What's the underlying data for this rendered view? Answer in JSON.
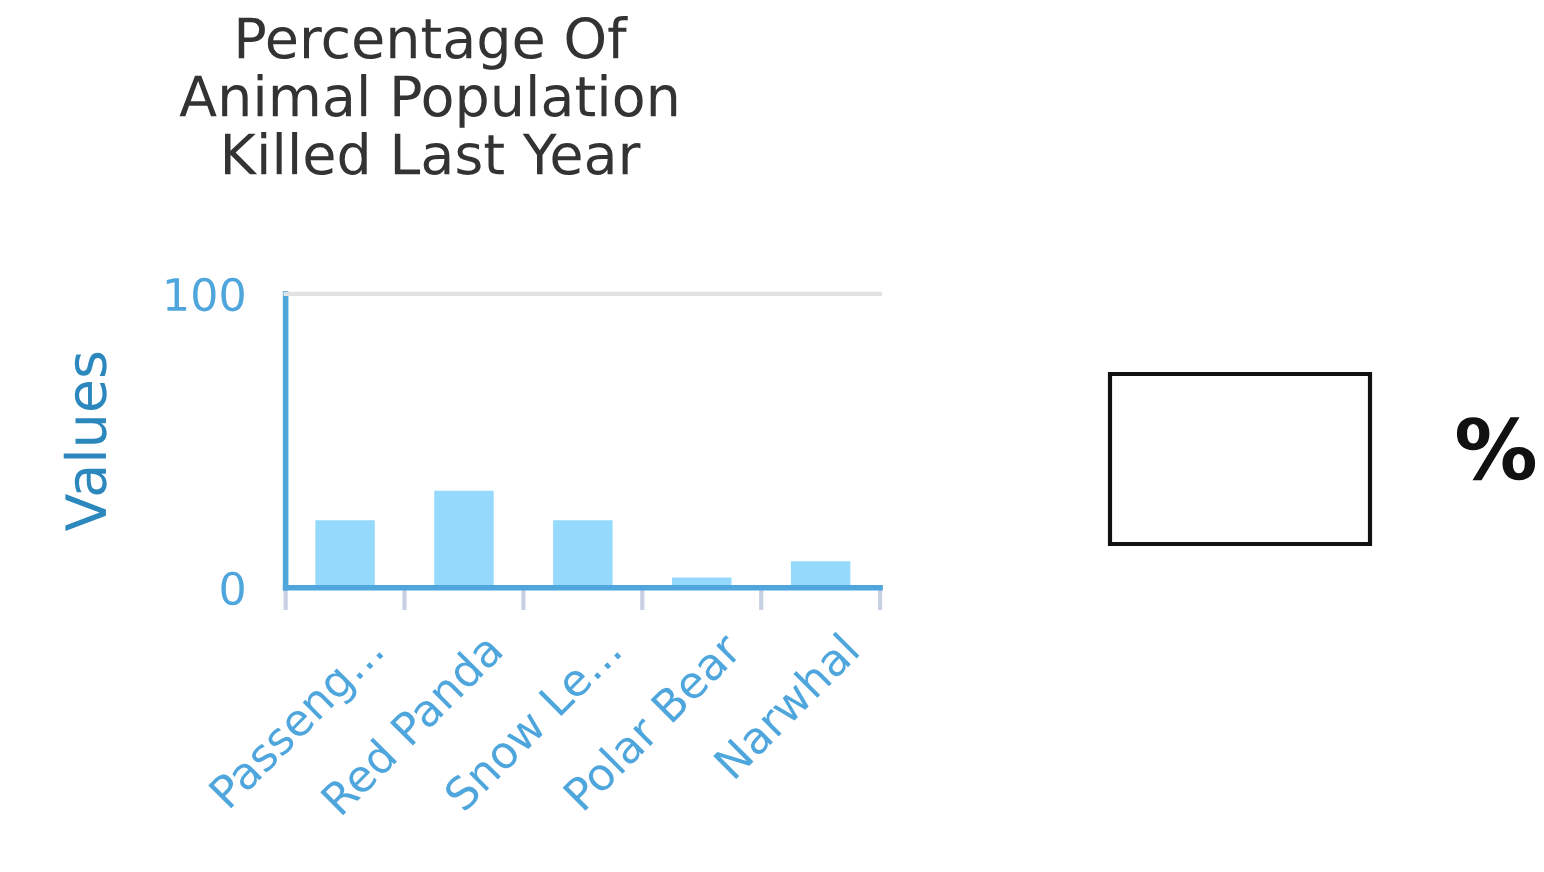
{
  "chart_data": {
    "type": "bar",
    "title": "Percentage Of\nAnimal Population\nKilled Last Year",
    "ylabel": "Values",
    "categories": [
      "Passeng...",
      "Red Panda",
      "Snow Le...",
      "Polar Bear",
      "Narwhal"
    ],
    "values": [
      23,
      33,
      23,
      3.5,
      9
    ],
    "color": "#95dafc",
    "ylim": [
      0,
      100
    ],
    "yticks": [
      0,
      100
    ],
    "annotations": [
      "%"
    ]
  }
}
